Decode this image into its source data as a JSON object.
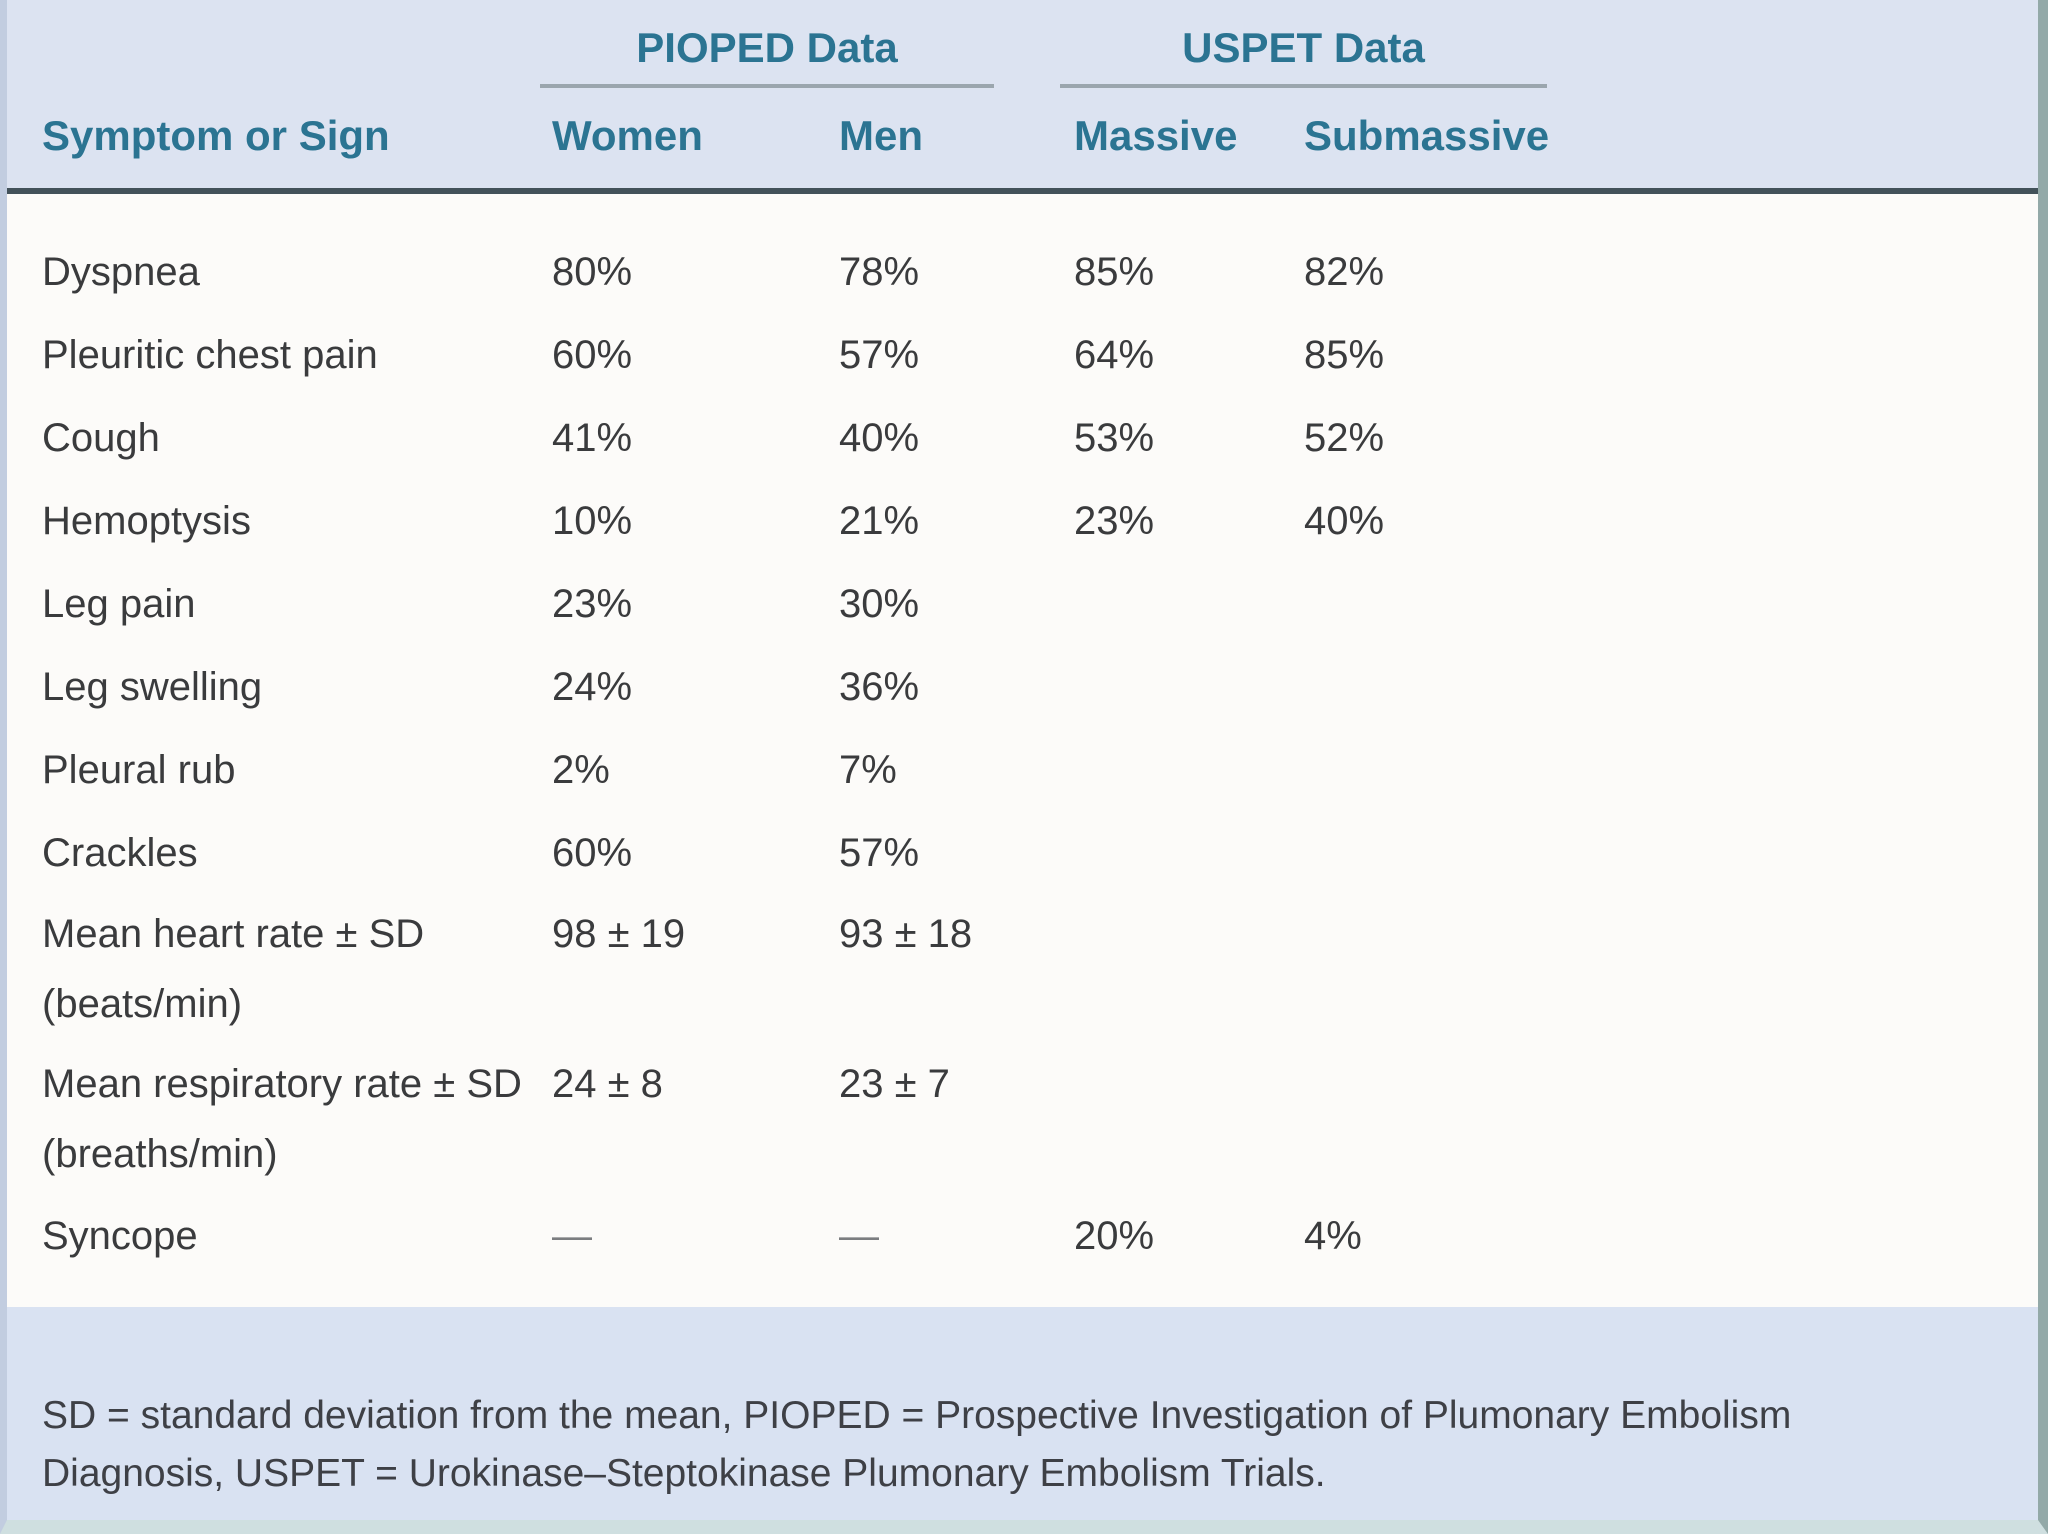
{
  "table": {
    "group_headers": {
      "pioped": "PIOPED Data",
      "uspet": "USPET Data"
    },
    "column_headers": {
      "symptom": "Symptom or Sign",
      "women": "Women",
      "men": "Men",
      "massive": "Massive",
      "submassive": "Submassive"
    },
    "rows": [
      {
        "label": "Dyspnea",
        "women": "80%",
        "men": "78%",
        "massive": "85%",
        "submassive": "82%"
      },
      {
        "label": "Pleuritic chest pain",
        "women": "60%",
        "men": "57%",
        "massive": "64%",
        "submassive": "85%"
      },
      {
        "label": "Cough",
        "women": "41%",
        "men": "40%",
        "massive": "53%",
        "submassive": "52%"
      },
      {
        "label": "Hemoptysis",
        "women": "10%",
        "men": "21%",
        "massive": "23%",
        "submassive": "40%"
      },
      {
        "label": "Leg pain",
        "women": "23%",
        "men": "30%",
        "massive": "",
        "submassive": ""
      },
      {
        "label": "Leg swelling",
        "women": "24%",
        "men": "36%",
        "massive": "",
        "submassive": ""
      },
      {
        "label": "Pleural rub",
        "women": "2%",
        "men": "7%",
        "massive": "",
        "submassive": ""
      },
      {
        "label": "Crackles",
        "women": "60%",
        "men": "57%",
        "massive": "",
        "submassive": ""
      },
      {
        "label": "Mean heart rate ± SD",
        "label2": "(beats/min)",
        "women": "98 ± 19",
        "men": "93 ± 18",
        "massive": "",
        "submassive": ""
      },
      {
        "label": "Mean respiratory rate ± SD",
        "label2": "(breaths/min)",
        "women": "24 ± 8",
        "men": "23 ± 7",
        "massive": "",
        "submassive": ""
      },
      {
        "label": "Syncope",
        "women": "—",
        "men": "—",
        "massive": "20%",
        "submassive": "4%"
      }
    ],
    "footnote": "SD = standard deviation from the mean, PIOPED = Prospective Investigation of Plumonary Embolism Diagnosis, USPET = Urokinase–Steptokinase Plumonary Embolism Trials."
  },
  "colors": {
    "header_band": "#dce3f1",
    "footer_band": "#d9e2f2",
    "body_background": "#fcfbf9",
    "heading_text": "#2b7492",
    "body_text": "#3a3b3d",
    "thick_rule": "#43525a",
    "thin_rule": "#9ba6ae"
  }
}
